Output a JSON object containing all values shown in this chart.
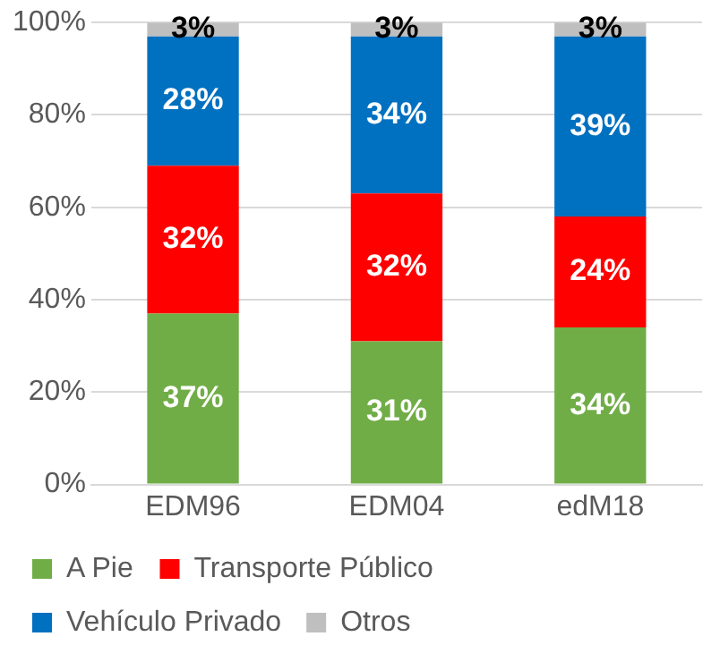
{
  "chart_data": {
    "type": "bar",
    "stacked": true,
    "categories": [
      "EDM96",
      "EDM04",
      "edM18"
    ],
    "series": [
      {
        "name": "A Pie",
        "color": "#70ad47",
        "values": [
          37,
          31,
          34
        ],
        "value_labels": [
          "37%",
          "31%",
          "34%"
        ]
      },
      {
        "name": "Transporte Público",
        "color": "#ff0000",
        "values": [
          32,
          32,
          24
        ],
        "value_labels": [
          "32%",
          "32%",
          "24%"
        ]
      },
      {
        "name": "Vehículo Privado",
        "color": "#0070c0",
        "values": [
          28,
          34,
          39
        ],
        "value_labels": [
          "28%",
          "34%",
          "39%"
        ]
      },
      {
        "name": "Otros",
        "color": "#bfbfbf",
        "values": [
          3,
          3,
          3
        ],
        "value_labels": [
          "3%",
          "3%",
          "3%"
        ]
      }
    ],
    "ylim": [
      0,
      100
    ],
    "yticks": [
      {
        "value": 0,
        "label": "0%"
      },
      {
        "value": 20,
        "label": "20%"
      },
      {
        "value": 40,
        "label": "40%"
      },
      {
        "value": 60,
        "label": "60%"
      },
      {
        "value": 80,
        "label": "80%"
      },
      {
        "value": 100,
        "label": "100%"
      }
    ],
    "grid": "y",
    "legend": "bottom"
  }
}
